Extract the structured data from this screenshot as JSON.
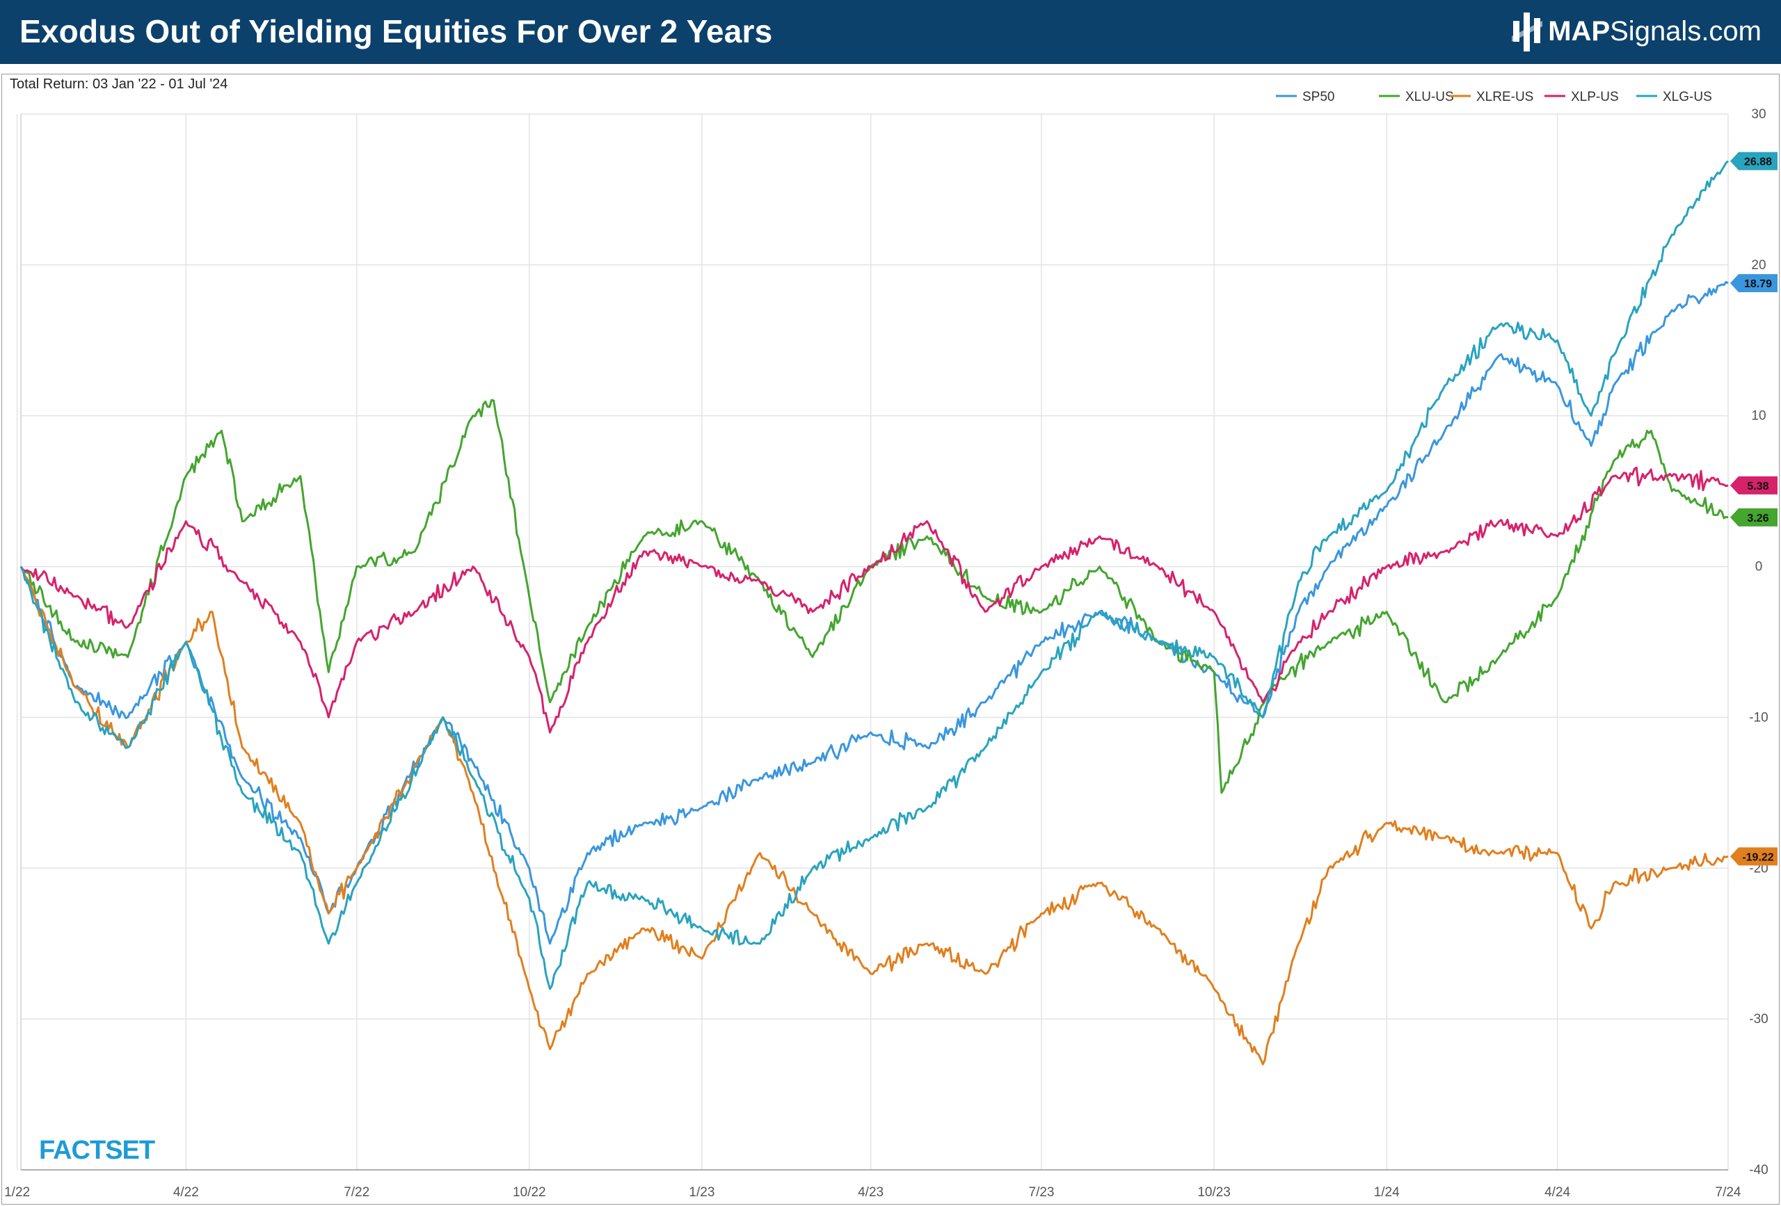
{
  "header": {
    "title": "Exodus Out of Yielding Equities For Over 2 Years",
    "brand": {
      "bold": "MAP",
      "rest": "Signals.com"
    }
  },
  "chart_data": {
    "type": "line",
    "subtitle": "Total Return: 03 Jan '22 - 01 Jul '24",
    "source_label": "FACTSET",
    "x_start": "2022-01-03",
    "x_end": "2024-07-01",
    "x_tick_labels": [
      "1/22",
      "4/22",
      "7/22",
      "10/22",
      "1/23",
      "4/23",
      "7/23",
      "10/23",
      "1/24",
      "4/24",
      "7/24"
    ],
    "x_tick_dates": [
      "2022-01-01",
      "2022-04-01",
      "2022-07-01",
      "2022-10-01",
      "2023-01-01",
      "2023-04-01",
      "2023-07-01",
      "2023-10-01",
      "2024-01-01",
      "2024-04-01",
      "2024-07-01"
    ],
    "ylim": [
      -40,
      30
    ],
    "y_ticks": [
      30,
      20,
      10,
      0,
      -10,
      -20,
      -30,
      -40
    ],
    "y_tick_labels": [
      "30",
      "20",
      "10",
      "0",
      "-10",
      "-20",
      "-30",
      "-40"
    ],
    "grid": true,
    "legend_position": "top-right",
    "series": [
      {
        "name": "SP50",
        "color": "#3a96dd",
        "end_label": "18.79",
        "dates": [
          "2022-01-03",
          "2022-02-01",
          "2022-03-01",
          "2022-04-01",
          "2022-05-01",
          "2022-06-01",
          "2022-06-16",
          "2022-07-01",
          "2022-08-16",
          "2022-09-01",
          "2022-10-01",
          "2022-10-12",
          "2022-11-01",
          "2022-12-01",
          "2023-01-01",
          "2023-02-01",
          "2023-03-01",
          "2023-04-01",
          "2023-05-01",
          "2023-06-01",
          "2023-07-01",
          "2023-08-01",
          "2023-09-01",
          "2023-10-01",
          "2023-10-27",
          "2023-11-15",
          "2023-12-01",
          "2024-01-01",
          "2024-02-01",
          "2024-03-01",
          "2024-04-01",
          "2024-04-19",
          "2024-05-01",
          "2024-06-01",
          "2024-07-01"
        ],
        "values": [
          0,
          -8,
          -10,
          -5,
          -14,
          -18,
          -23,
          -20,
          -10,
          -13,
          -20,
          -25,
          -19,
          -17,
          -16,
          -14,
          -13,
          -11,
          -12,
          -9,
          -5,
          -3,
          -5,
          -7,
          -10,
          -3,
          0,
          4,
          9,
          14,
          12,
          8,
          12,
          17,
          18.79
        ]
      },
      {
        "name": "XLU-US",
        "color": "#44a52f",
        "end_label": "3.26",
        "dates": [
          "2022-01-03",
          "2022-02-01",
          "2022-03-01",
          "2022-04-01",
          "2022-04-20",
          "2022-05-01",
          "2022-06-01",
          "2022-06-16",
          "2022-07-01",
          "2022-08-01",
          "2022-09-01",
          "2022-09-12",
          "2022-10-01",
          "2022-10-12",
          "2022-11-01",
          "2022-12-01",
          "2023-01-01",
          "2023-02-01",
          "2023-03-01",
          "2023-04-01",
          "2023-05-01",
          "2023-06-01",
          "2023-07-01",
          "2023-08-01",
          "2023-09-01",
          "2023-10-01",
          "2023-10-05",
          "2023-11-01",
          "2023-12-01",
          "2024-01-01",
          "2024-02-01",
          "2024-03-01",
          "2024-04-01",
          "2024-05-01",
          "2024-05-21",
          "2024-06-01",
          "2024-07-01"
        ],
        "values": [
          0,
          -5,
          -6,
          6,
          9,
          3,
          6,
          -7,
          0,
          1,
          10,
          11,
          -2,
          -9,
          -4,
          2,
          3,
          -1,
          -6,
          0,
          2,
          -2,
          -3,
          0,
          -5,
          -7,
          -15,
          -8,
          -5,
          -3,
          -9,
          -6,
          -2,
          7,
          9,
          5,
          3.26
        ]
      },
      {
        "name": "XLRE-US",
        "color": "#e07f1e",
        "end_label": "-19.22",
        "dates": [
          "2022-01-03",
          "2022-02-01",
          "2022-03-01",
          "2022-04-01",
          "2022-04-15",
          "2022-05-01",
          "2022-06-01",
          "2022-06-16",
          "2022-07-01",
          "2022-08-16",
          "2022-09-01",
          "2022-10-01",
          "2022-10-12",
          "2022-11-01",
          "2022-12-01",
          "2023-01-01",
          "2023-02-01",
          "2023-03-01",
          "2023-04-01",
          "2023-05-01",
          "2023-06-01",
          "2023-07-01",
          "2023-08-01",
          "2023-09-01",
          "2023-10-01",
          "2023-10-27",
          "2023-11-15",
          "2023-12-01",
          "2024-01-01",
          "2024-02-01",
          "2024-03-01",
          "2024-04-01",
          "2024-04-19",
          "2024-05-01",
          "2024-06-01",
          "2024-07-01"
        ],
        "values": [
          0,
          -8,
          -12,
          -5,
          -3,
          -12,
          -17,
          -23,
          -20,
          -10,
          -15,
          -28,
          -32,
          -27,
          -24,
          -26,
          -19,
          -23,
          -27,
          -25,
          -27,
          -23,
          -21,
          -24,
          -28,
          -33,
          -25,
          -20,
          -17,
          -18,
          -19,
          -19,
          -24,
          -21,
          -20,
          -19.22
        ]
      },
      {
        "name": "XLP-US",
        "color": "#d6226b",
        "end_label": "5.38",
        "dates": [
          "2022-01-03",
          "2022-02-01",
          "2022-03-01",
          "2022-04-01",
          "2022-05-01",
          "2022-06-01",
          "2022-06-16",
          "2022-07-01",
          "2022-08-01",
          "2022-09-01",
          "2022-10-01",
          "2022-10-12",
          "2022-11-01",
          "2022-12-01",
          "2023-01-01",
          "2023-02-01",
          "2023-03-01",
          "2023-04-01",
          "2023-05-01",
          "2023-06-01",
          "2023-07-01",
          "2023-08-01",
          "2023-09-01",
          "2023-10-01",
          "2023-10-27",
          "2023-11-15",
          "2023-12-01",
          "2024-01-01",
          "2024-02-01",
          "2024-03-01",
          "2024-04-01",
          "2024-05-01",
          "2024-06-01",
          "2024-07-01"
        ],
        "values": [
          0,
          -2,
          -4,
          3,
          -1,
          -5,
          -10,
          -5,
          -3,
          0,
          -6,
          -11,
          -5,
          1,
          0,
          -1,
          -3,
          0,
          3,
          -3,
          0,
          2,
          0,
          -3,
          -9,
          -5,
          -3,
          0,
          1,
          3,
          2,
          6,
          6,
          5.38
        ]
      },
      {
        "name": "XLG-US",
        "color": "#29a3be",
        "end_label": "26.88",
        "dates": [
          "2022-01-03",
          "2022-02-01",
          "2022-03-01",
          "2022-04-01",
          "2022-05-01",
          "2022-06-01",
          "2022-06-16",
          "2022-07-01",
          "2022-08-16",
          "2022-09-01",
          "2022-10-01",
          "2022-10-12",
          "2022-11-01",
          "2022-12-01",
          "2023-01-01",
          "2023-02-01",
          "2023-03-01",
          "2023-04-01",
          "2023-05-01",
          "2023-06-01",
          "2023-07-01",
          "2023-08-01",
          "2023-09-01",
          "2023-10-01",
          "2023-10-27",
          "2023-11-15",
          "2023-12-01",
          "2024-01-01",
          "2024-02-01",
          "2024-03-01",
          "2024-04-01",
          "2024-04-19",
          "2024-05-01",
          "2024-06-01",
          "2024-07-01"
        ],
        "values": [
          0,
          -9,
          -12,
          -5,
          -15,
          -19,
          -25,
          -21,
          -10,
          -14,
          -22,
          -28,
          -21,
          -22,
          -24,
          -25,
          -20,
          -18,
          -16,
          -12,
          -7,
          -3,
          -5,
          -6,
          -10,
          -1,
          2,
          5,
          12,
          16,
          15,
          10,
          14,
          22,
          26.88
        ]
      }
    ]
  }
}
